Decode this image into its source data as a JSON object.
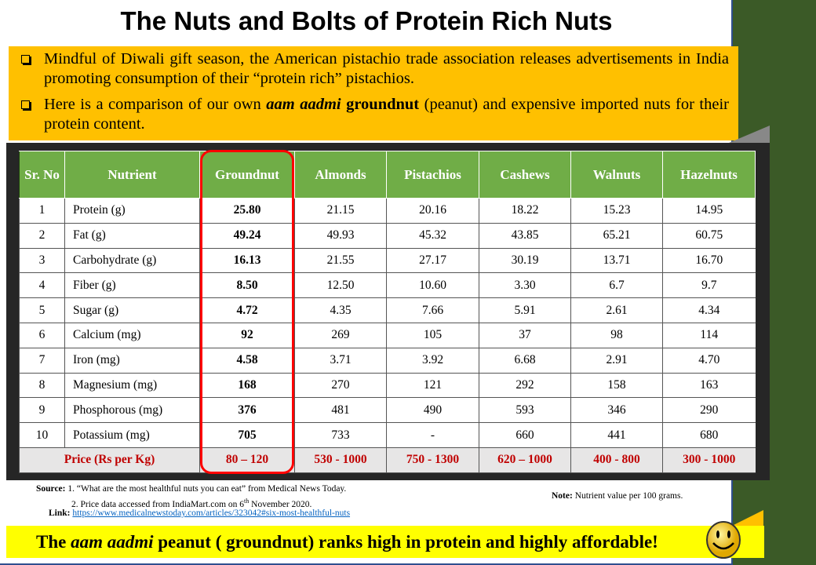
{
  "title": "The Nuts and Bolts of Protein Rich Nuts",
  "bullets": [
    {
      "text": "Mindful of Diwali gift season, the American pistachio trade association releases advertisements in India promoting consumption of their “protein rich” pistachios."
    },
    {
      "pre": "Here is a comparison of our own ",
      "em": "aam aadmi",
      "strong": " groundnut",
      "post": " (peanut) and expensive imported nuts for their protein content."
    }
  ],
  "table": {
    "headers": [
      "Sr. No",
      "Nutrient",
      "Groundnut",
      "Almonds",
      "Pistachios",
      "Cashews",
      "Walnuts",
      "Hazelnuts"
    ],
    "rows": [
      [
        "1",
        "Protein (g)",
        "25.80",
        "21.15",
        "20.16",
        "18.22",
        "15.23",
        "14.95"
      ],
      [
        "2",
        "Fat (g)",
        "49.24",
        "49.93",
        "45.32",
        "43.85",
        "65.21",
        "60.75"
      ],
      [
        "3",
        "Carbohydrate (g)",
        "16.13",
        "21.55",
        "27.17",
        "30.19",
        "13.71",
        "16.70"
      ],
      [
        "4",
        "Fiber (g)",
        "8.50",
        "12.50",
        "10.60",
        "3.30",
        "6.7",
        "9.7"
      ],
      [
        "5",
        "Sugar (g)",
        "4.72",
        "4.35",
        "7.66",
        "5.91",
        "2.61",
        "4.34"
      ],
      [
        "6",
        "Calcium (mg)",
        "92",
        "269",
        "105",
        "37",
        "98",
        "114"
      ],
      [
        "7",
        "Iron (mg)",
        "4.58",
        "3.71",
        "3.92",
        "6.68",
        "2.91",
        "4.70"
      ],
      [
        "8",
        "Magnesium (mg)",
        "168",
        "270",
        "121",
        "292",
        "158",
        "163"
      ],
      [
        "9",
        "Phosphorous (mg)",
        "376",
        "481",
        "490",
        "593",
        "346",
        "290"
      ],
      [
        "10",
        "Potassium (mg)",
        "705",
        "733",
        "-",
        "660",
        "441",
        "680"
      ]
    ],
    "price_label": "Price (Rs per Kg)",
    "prices": [
      "80 – 120",
      "530 - 1000",
      "750 - 1300",
      "620 – 1000",
      "400 - 800",
      "300 - 1000"
    ]
  },
  "source": {
    "label": "Source:",
    "line1": "1. “What are the most healthful nuts you can eat” from Medical News Today.",
    "line2a": "2. Price data accessed from IndiaMart.com on 6",
    "line2sup": "th",
    "line2b": " November 2020."
  },
  "note": {
    "label": "Note:",
    "text": " Nutrient value per 100 grams."
  },
  "link": {
    "label": "Link:",
    "url": "https://www.medicalnewstoday.com/articles/323042#six-most-healthful-nuts"
  },
  "conclusion": {
    "pre": "The ",
    "em": "aam aadmi",
    "post": " peanut ( groundnut) ranks high in protein and highly affordable!"
  },
  "colors": {
    "header_green": "#70ad47",
    "bullet_bg": "#ffc000",
    "conclusion_bg": "#ffff00",
    "highlight": "#ff0000",
    "price_text": "#c00000",
    "side": "#3b5a27"
  },
  "icons": {
    "smiley": "smiley-face-icon"
  }
}
